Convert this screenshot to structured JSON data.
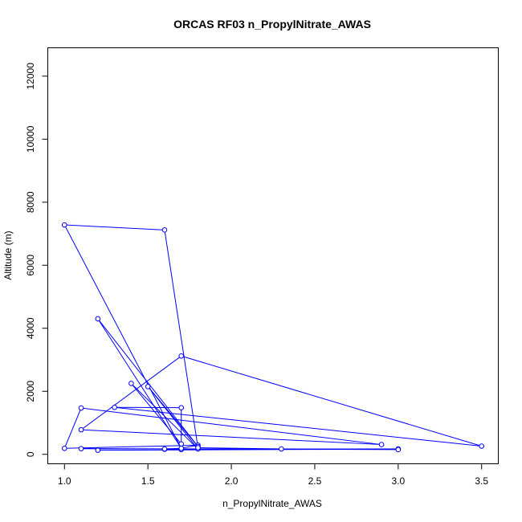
{
  "chart_data": {
    "type": "line",
    "title": "ORCAS RF03 n_PropylNitrate_AWAS",
    "xlabel": "n_PropylNitrate_AWAS",
    "ylabel": "Altitude (m)",
    "xlim": [
      0.9,
      3.6
    ],
    "ylim": [
      -300,
      12900
    ],
    "x_ticks": [
      1.0,
      1.5,
      2.0,
      2.5,
      3.0,
      3.5
    ],
    "x_tick_labels": [
      "1.0",
      "1.5",
      "2.0",
      "2.5",
      "3.0",
      "3.5"
    ],
    "y_ticks": [
      0,
      2000,
      4000,
      6000,
      8000,
      10000,
      12000
    ],
    "y_tick_labels": [
      "0",
      "2000",
      "4000",
      "6000",
      "8000",
      "10000",
      "12000"
    ],
    "series_color": "#0000ff",
    "markers": "open-circle",
    "points": [
      {
        "x": 1.2,
        "y": 130
      },
      {
        "x": 3.0,
        "y": 170
      },
      {
        "x": 1.6,
        "y": 160
      },
      {
        "x": 1.7,
        "y": 150
      },
      {
        "x": 3.0,
        "y": 160
      },
      {
        "x": 1.1,
        "y": 180
      },
      {
        "x": 1.6,
        "y": 170
      },
      {
        "x": 1.7,
        "y": 190
      },
      {
        "x": 1.8,
        "y": 290
      },
      {
        "x": 1.0,
        "y": 190
      },
      {
        "x": 1.1,
        "y": 1470
      },
      {
        "x": 2.9,
        "y": 310
      },
      {
        "x": 1.1,
        "y": 780
      },
      {
        "x": 1.7,
        "y": 3120
      },
      {
        "x": 3.5,
        "y": 260
      },
      {
        "x": 1.3,
        "y": 1490
      },
      {
        "x": 1.7,
        "y": 1480
      },
      {
        "x": 1.7,
        "y": 330
      },
      {
        "x": 1.4,
        "y": 2250
      },
      {
        "x": 1.8,
        "y": 170
      },
      {
        "x": 1.5,
        "y": 2150
      },
      {
        "x": 1.8,
        "y": 250
      },
      {
        "x": 1.2,
        "y": 4300
      },
      {
        "x": 1.7,
        "y": 190
      },
      {
        "x": 1.0,
        "y": 7280
      },
      {
        "x": 1.6,
        "y": 7120
      },
      {
        "x": 1.8,
        "y": 210
      },
      {
        "x": 2.3,
        "y": 170
      },
      {
        "x": 3.0,
        "y": 150
      }
    ]
  }
}
